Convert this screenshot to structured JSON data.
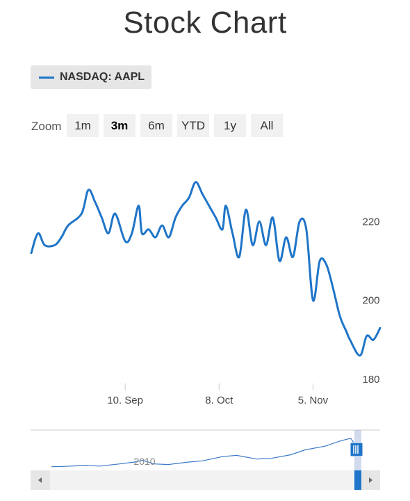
{
  "title": "Stock Chart",
  "legend": {
    "label": "NASDAQ: AAPL"
  },
  "zoom": {
    "label": "Zoom",
    "buttons": [
      "1m",
      "3m",
      "6m",
      "YTD",
      "1y",
      "All"
    ],
    "active": "3m"
  },
  "colors": {
    "series": "#1f75c8",
    "navigator": "#3c78c8",
    "button_bg": "#f1f1f1"
  },
  "navigator": {
    "year_label": "2010"
  },
  "chart_data": {
    "type": "line",
    "title": "Stock Chart",
    "series": [
      {
        "name": "NASDAQ: AAPL",
        "x": [
          "2018-08-13",
          "2018-08-15",
          "2018-08-17",
          "2018-08-20",
          "2018-08-22",
          "2018-08-24",
          "2018-08-28",
          "2018-08-30",
          "2018-09-01",
          "2018-09-03",
          "2018-09-05",
          "2018-09-07",
          "2018-09-10",
          "2018-09-12",
          "2018-09-14",
          "2018-09-15",
          "2018-09-17",
          "2018-09-19",
          "2018-09-21",
          "2018-09-23",
          "2018-09-25",
          "2018-09-27",
          "2018-09-29",
          "2018-10-01",
          "2018-10-03",
          "2018-10-05",
          "2018-10-07",
          "2018-10-09",
          "2018-10-10",
          "2018-10-12",
          "2018-10-14",
          "2018-10-16",
          "2018-10-18",
          "2018-10-20",
          "2018-10-22",
          "2018-10-24",
          "2018-10-26",
          "2018-10-28",
          "2018-10-30",
          "2018-11-01",
          "2018-11-03",
          "2018-11-05",
          "2018-11-07",
          "2018-11-09",
          "2018-11-11",
          "2018-11-13",
          "2018-11-15",
          "2018-11-16",
          "2018-11-19",
          "2018-11-21",
          "2018-11-23",
          "2018-11-25"
        ],
        "y": [
          212,
          217,
          214,
          214,
          216,
          219,
          222,
          228,
          225,
          221,
          217,
          222,
          215,
          217,
          224,
          217,
          218,
          216,
          219,
          216,
          221,
          224,
          226,
          230,
          227,
          224,
          221,
          218,
          224,
          217,
          211,
          223,
          214,
          220,
          214,
          221,
          210,
          216,
          211,
          220,
          218,
          200,
          210,
          209,
          203,
          196,
          192,
          190,
          186,
          191,
          190,
          193
        ]
      }
    ],
    "x_tick_labels": [
      "10. Sep",
      "8. Oct",
      "5. Nov"
    ],
    "x_ticks": [
      "2018-09-10",
      "2018-10-08",
      "2018-11-05"
    ],
    "y_tick_labels": [
      "180",
      "200",
      "220"
    ],
    "y_ticks": [
      180,
      200,
      220
    ],
    "ylim": [
      180,
      240
    ],
    "xlim": [
      "2018-08-13",
      "2018-11-25"
    ],
    "navigator_series": [
      {
        "x": "2010-01-01",
        "y": 0.03
      },
      {
        "x": "2010-06-01",
        "y": 0.04
      },
      {
        "x": "2011-01-01",
        "y": 0.07
      },
      {
        "x": "2011-06-01",
        "y": 0.05
      },
      {
        "x": "2012-01-01",
        "y": 0.12
      },
      {
        "x": "2012-06-01",
        "y": 0.18
      },
      {
        "x": "2012-09-01",
        "y": 0.24
      },
      {
        "x": "2013-01-01",
        "y": 0.12
      },
      {
        "x": "2013-06-01",
        "y": 0.1
      },
      {
        "x": "2014-01-01",
        "y": 0.18
      },
      {
        "x": "2014-06-01",
        "y": 0.22
      },
      {
        "x": "2015-01-01",
        "y": 0.36
      },
      {
        "x": "2015-06-01",
        "y": 0.4
      },
      {
        "x": "2016-01-01",
        "y": 0.28
      },
      {
        "x": "2016-06-01",
        "y": 0.3
      },
      {
        "x": "2017-01-01",
        "y": 0.42
      },
      {
        "x": "2017-06-01",
        "y": 0.58
      },
      {
        "x": "2018-01-01",
        "y": 0.7
      },
      {
        "x": "2018-06-01",
        "y": 0.86
      },
      {
        "x": "2018-10-01",
        "y": 0.96
      },
      {
        "x": "2018-11-25",
        "y": 0.72
      }
    ]
  }
}
